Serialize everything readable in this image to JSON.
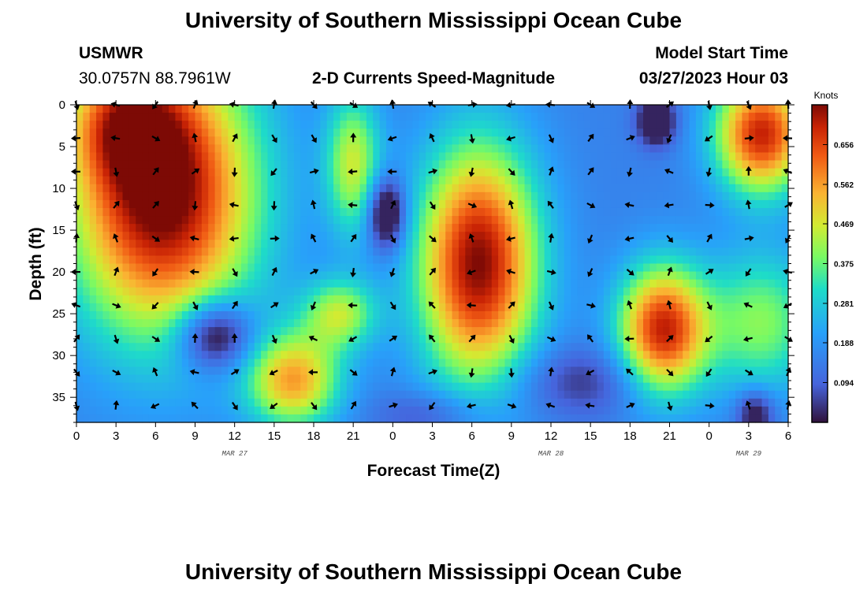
{
  "page": {
    "title": "University of Southern Mississippi Ocean Cube",
    "footer_title": "University of Southern Mississippi Ocean Cube"
  },
  "station": {
    "name": "USMWR",
    "coords": "30.0757N  88.7961W"
  },
  "model": {
    "label": "Model Start Time",
    "time": "03/27/2023 Hour 03"
  },
  "chart_data": {
    "type": "heatmap",
    "title": "2-D Currents Speed-Magnitude",
    "xlabel": "Forecast Time(Z)",
    "ylabel": "Depth (ft)",
    "x_tick_labels": [
      "0",
      "3",
      "6",
      "9",
      "12",
      "15",
      "18",
      "21",
      "0",
      "3",
      "6",
      "9",
      "12",
      "15",
      "18",
      "21",
      "0",
      "3",
      "6"
    ],
    "x_range_hours": [
      0,
      54
    ],
    "y_ticks": [
      0,
      5,
      10,
      15,
      20,
      25,
      30,
      35
    ],
    "y_tick_labels": [
      "0",
      "5",
      "10",
      "15",
      "20",
      "25",
      "30",
      "35"
    ],
    "y_range_ft": [
      0,
      38
    ],
    "date_labels": [
      {
        "text": "MAR 27",
        "hour": 12
      },
      {
        "text": "MAR 28",
        "hour": 36
      },
      {
        "text": "MAR 29",
        "hour": 51
      }
    ],
    "colorbar": {
      "unit": "Knots",
      "ticks": [
        "0.656",
        "0.562",
        "0.469",
        "0.375",
        "0.281",
        "0.188",
        "0.094"
      ],
      "tick_values": [
        0.656,
        0.562,
        0.469,
        0.375,
        0.281,
        0.188,
        0.094
      ],
      "range": [
        0.0,
        0.75
      ]
    },
    "speed_blobs": [
      {
        "hour": 6.5,
        "depth": 10.5,
        "rh": 5.0,
        "rd": 12.0,
        "value": 0.64
      },
      {
        "hour": 3.5,
        "depth": 2.0,
        "rh": 3.0,
        "rd": 5.0,
        "value": 0.25
      },
      {
        "hour": 10.5,
        "depth": 27.5,
        "rh": 2.0,
        "rd": 3.0,
        "value": -0.3
      },
      {
        "hour": 16.5,
        "depth": 33.0,
        "rh": 2.5,
        "rd": 4.0,
        "value": 0.4
      },
      {
        "hour": 21.0,
        "depth": 7.0,
        "rh": 1.5,
        "rd": 6.0,
        "value": 0.3
      },
      {
        "hour": 20.0,
        "depth": 25.0,
        "rh": 2.0,
        "rd": 3.0,
        "value": 0.28
      },
      {
        "hour": 23.5,
        "depth": 13.0,
        "rh": 1.0,
        "rd": 3.0,
        "value": -0.3
      },
      {
        "hour": 30.5,
        "depth": 19.0,
        "rh": 3.2,
        "rd": 10.0,
        "value": 0.6
      },
      {
        "hour": 38.5,
        "depth": 33.0,
        "rh": 4.0,
        "rd": 3.0,
        "value": -0.12
      },
      {
        "hour": 44.5,
        "depth": 27.0,
        "rh": 2.4,
        "rd": 5.5,
        "value": 0.55
      },
      {
        "hour": 44.0,
        "depth": 2.0,
        "rh": 1.0,
        "rd": 2.0,
        "value": -0.25
      },
      {
        "hour": 52.0,
        "depth": 3.5,
        "rh": 2.5,
        "rd": 5.0,
        "value": 0.55
      },
      {
        "hour": 52.0,
        "depth": 26.0,
        "rh": 3.0,
        "rd": 6.0,
        "value": 0.25
      },
      {
        "hour": 51.5,
        "depth": 37.0,
        "rh": 1.0,
        "rd": 2.0,
        "value": -0.2
      },
      {
        "hour": 27.0,
        "depth": 37.0,
        "rh": 3.0,
        "rd": 2.0,
        "value": -0.1
      }
    ],
    "speed_background": 0.15,
    "arrow_hours": [
      0,
      3,
      6,
      9,
      12,
      15,
      18,
      21,
      24,
      27,
      30,
      33,
      36,
      39,
      42,
      45,
      48,
      51,
      54
    ],
    "arrow_depths": [
      0,
      4,
      8,
      12,
      16,
      20,
      24,
      28,
      32,
      36
    ]
  }
}
